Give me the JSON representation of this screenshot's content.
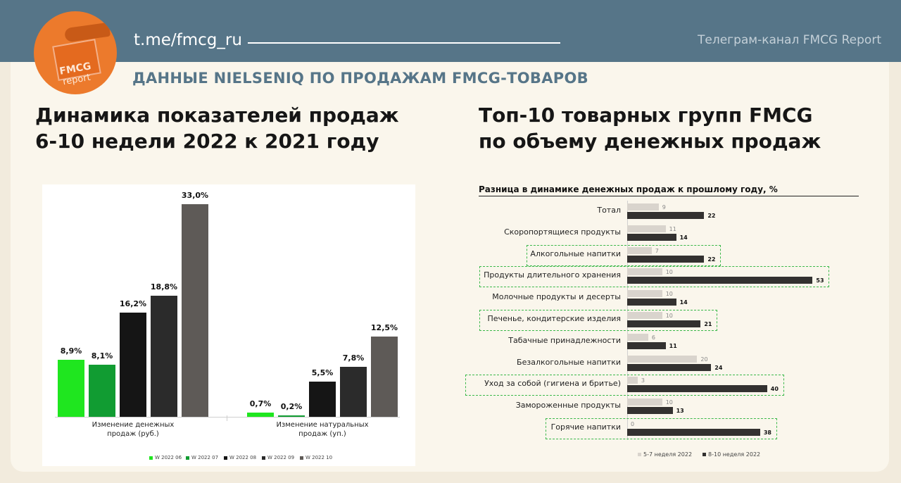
{
  "header": {
    "telegram_link": "t.me/fmcg_ru",
    "channel_name": "Телеграм-канал FMCG Report",
    "subtitle": "ДАННЫЕ NIELSENIQ ПО ПРОДАЖАМ FMCG-ТОВАРОВ",
    "logo_line1": "FMCG",
    "logo_line2": "report"
  },
  "colors": {
    "header_band": "#567588",
    "logo_orange": "#ec7a2c",
    "w06": "#1fe61f",
    "w07": "#119c32",
    "w08": "#151515",
    "w09": "#2b2b2b",
    "w10": "#5e5a57",
    "light_bar": "#d9d4cd",
    "dark_bar": "#333130",
    "highlight": "#3bb84a"
  },
  "chart_data": [
    {
      "type": "bar",
      "title_lines": [
        "Динамика показателей продаж",
        "6-10 недели 2022 к 2021 году"
      ],
      "categories": [
        [
          "Изменение денежных",
          "продаж (руб.)"
        ],
        [
          "Изменение натуральных",
          "продаж (уп.)"
        ]
      ],
      "series": [
        {
          "name": "W 2022 06",
          "values": [
            8.9,
            0.7
          ],
          "labels": [
            "8,9%",
            "0,7%"
          ]
        },
        {
          "name": "W 2022 07",
          "values": [
            8.1,
            0.2
          ],
          "labels": [
            "8,1%",
            "0,2%"
          ]
        },
        {
          "name": "W 2022 08",
          "values": [
            16.2,
            5.5
          ],
          "labels": [
            "16,2%",
            "5,5%"
          ]
        },
        {
          "name": "W 2022 09",
          "values": [
            18.8,
            7.8
          ],
          "labels": [
            "18,8%",
            "7,8%"
          ]
        },
        {
          "name": "W 2022 10",
          "values": [
            33.0,
            12.5
          ],
          "labels": [
            "33,0%",
            "12,5%"
          ]
        }
      ],
      "ylim": [
        0,
        33
      ],
      "legend_position": "bottom"
    },
    {
      "type": "bar",
      "orientation": "horizontal",
      "title_lines": [
        "Топ-10 товарных групп FMCG",
        "по объему денежных продаж"
      ],
      "subtitle": "Разница в динамике денежных продаж к прошлому году, %",
      "categories": [
        "Тотал",
        "Скоропортящиеся продукты",
        "Алкогольные напитки",
        "Продукты длительного хранения",
        "Молочные продукты и десерты",
        "Печенье, кондитерские изделия",
        "Табачные принадлежности",
        "Безалкогольные напитки",
        "Уход за собой (гигиена и бритье)",
        "Замороженные продукты",
        "Горячие напитки"
      ],
      "highlighted": [
        2,
        3,
        5,
        8,
        10
      ],
      "series": [
        {
          "name": "5-7 неделя 2022",
          "values": [
            9,
            11,
            7,
            10,
            10,
            10,
            6,
            20,
            3,
            10,
            0
          ]
        },
        {
          "name": "8-10 неделя 2022",
          "values": [
            22,
            14,
            22,
            53,
            14,
            21,
            11,
            24,
            40,
            13,
            38
          ]
        }
      ],
      "legend_position": "bottom"
    }
  ]
}
